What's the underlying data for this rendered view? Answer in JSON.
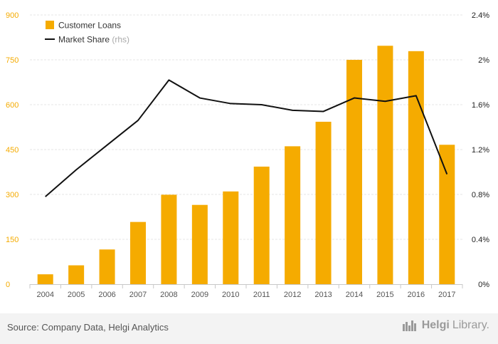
{
  "chart_data": {
    "type": "bar",
    "categories": [
      "2004",
      "2005",
      "2006",
      "2007",
      "2008",
      "2009",
      "2010",
      "2011",
      "2012",
      "2013",
      "2014",
      "2015",
      "2016",
      "2017"
    ],
    "series": [
      {
        "name": "Customer Loans",
        "type": "bar",
        "axis": "left",
        "values": [
          33,
          63,
          116,
          208,
          299,
          265,
          310,
          393,
          461,
          543,
          750,
          797,
          779,
          466
        ]
      },
      {
        "name": "Market Share",
        "name_suffix": "(rhs)",
        "type": "line",
        "axis": "right",
        "values": [
          0.78,
          1.02,
          1.24,
          1.46,
          1.82,
          1.66,
          1.61,
          1.6,
          1.55,
          1.54,
          1.66,
          1.63,
          1.68,
          0.98
        ]
      }
    ],
    "ylim_left": [
      0,
      900
    ],
    "yticks_left": [
      0,
      150,
      300,
      450,
      600,
      750,
      900
    ],
    "yticks_left_labels": [
      "0",
      "150",
      "300",
      "450",
      "600",
      "750",
      "900"
    ],
    "ylim_right": [
      0,
      2.4
    ],
    "yticks_right": [
      0,
      0.4,
      0.8,
      1.2,
      1.6,
      2.0,
      2.4
    ],
    "yticks_right_labels": [
      "0%",
      "0.4%",
      "0.8%",
      "1.2%",
      "1.6%",
      "2%",
      "2.4%"
    ],
    "grid": true,
    "legend_position": "top-left",
    "colors": {
      "bars": "#f5ab00",
      "line": "#111111",
      "grid": "#e6e6e6",
      "left_ticks": "#f5ab00",
      "right_ticks": "#222222"
    }
  },
  "footer": {
    "source": "Source: Company Data, Helgi Analytics",
    "brand_name": "Helgi",
    "brand_suffix": "Library."
  }
}
